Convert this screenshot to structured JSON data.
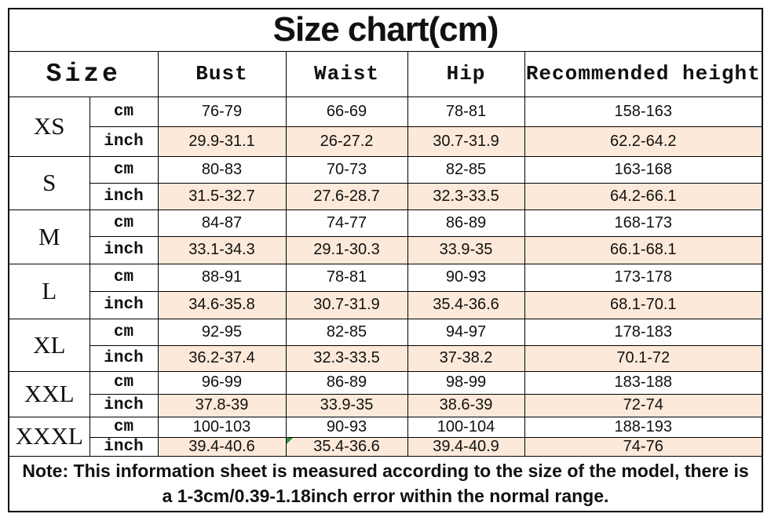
{
  "chart_data": {
    "type": "table",
    "title": "Size chart(cm)",
    "header": {
      "size": "Size",
      "bust": "Bust",
      "waist": "Waist",
      "hip": "Hip",
      "recommended_height": "Recommended height"
    },
    "unit_labels": {
      "cm": "cm",
      "inch": "inch"
    },
    "sizes": [
      {
        "label": "XS",
        "cm": [
          "76-79",
          "66-69",
          "78-81",
          "158-163"
        ],
        "inch": [
          "29.9-31.1",
          "26-27.2",
          "30.7-31.9",
          "62.2-64.2"
        ]
      },
      {
        "label": "S",
        "cm": [
          "80-83",
          "70-73",
          "82-85",
          "163-168"
        ],
        "inch": [
          "31.5-32.7",
          "27.6-28.7",
          "32.3-33.5",
          "64.2-66.1"
        ]
      },
      {
        "label": "M",
        "cm": [
          "84-87",
          "74-77",
          "86-89",
          "168-173"
        ],
        "inch": [
          "33.1-34.3",
          "29.1-30.3",
          "33.9-35",
          "66.1-68.1"
        ]
      },
      {
        "label": "L",
        "cm": [
          "88-91",
          "78-81",
          "90-93",
          "173-178"
        ],
        "inch": [
          "34.6-35.8",
          "30.7-31.9",
          "35.4-36.6",
          "68.1-70.1"
        ]
      },
      {
        "label": "XL",
        "cm": [
          "92-95",
          "82-85",
          "94-97",
          "178-183"
        ],
        "inch": [
          "36.2-37.4",
          "32.3-33.5",
          "37-38.2",
          "70.1-72"
        ]
      },
      {
        "label": "XXL",
        "cm": [
          "96-99",
          "86-89",
          "98-99",
          "183-188"
        ],
        "inch": [
          "37.8-39",
          "33.9-35",
          "38.6-39",
          "72-74"
        ]
      },
      {
        "label": "XXXL",
        "cm": [
          "100-103",
          "90-93",
          "100-104",
          "188-193"
        ],
        "inch": [
          "39.4-40.6",
          "35.4-36.6",
          "39.4-40.9",
          "74-76"
        ]
      }
    ],
    "error_flag_cell": {
      "size_label": "XXXL",
      "unit": "inch",
      "column_index": 1
    }
  },
  "note": "Note: This information sheet is measured according to the size of the model, there is a 1-3cm/0.39-1.18inch error within the normal range.",
  "colors": {
    "inch_row_bg": "#fde9d9",
    "border": "#000000",
    "flag_green": "#27963c",
    "text": "#111111"
  }
}
